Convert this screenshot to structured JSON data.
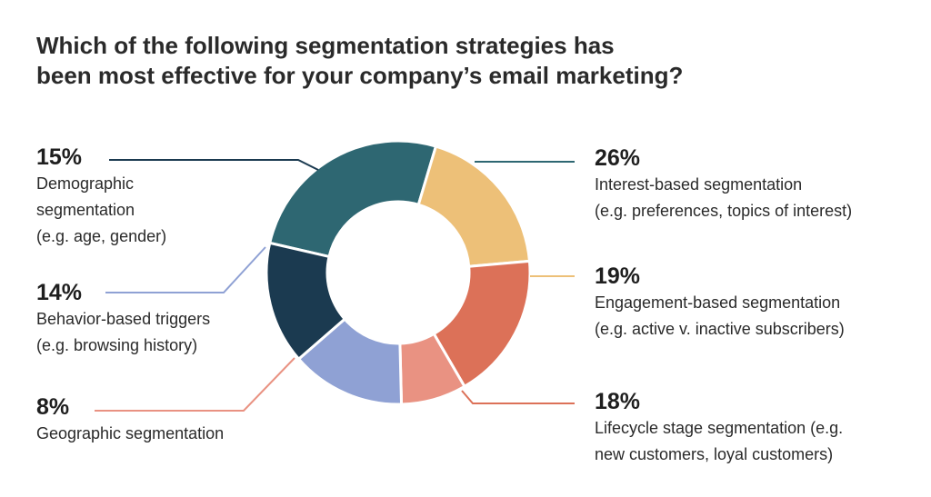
{
  "title_lines": [
    "Which of the following segmentation strategies has",
    "been most effective for your company’s email marketing?"
  ],
  "chart_data": {
    "type": "pie",
    "donut": true,
    "segments": [
      {
        "name": "Interest-based segmentation",
        "value": 26,
        "pct_label": "26%",
        "desc_lines": [
          "Interest-based segmentation",
          "(e.g. preferences, topics of interest)"
        ],
        "color": "#2e6772"
      },
      {
        "name": "Engagement-based segmentation",
        "value": 19,
        "pct_label": "19%",
        "desc_lines": [
          "Engagement-based segmentation",
          "(e.g. active v. inactive subscribers)"
        ],
        "color": "#edc078"
      },
      {
        "name": "Lifecycle stage segmentation",
        "value": 18,
        "pct_label": "18%",
        "desc_lines": [
          "Lifecycle stage segmentation (e.g.",
          "new customers, loyal customers)"
        ],
        "color": "#dc7158"
      },
      {
        "name": "Geographic segmentation",
        "value": 8,
        "pct_label": "8%",
        "desc_lines": [
          "Geographic segmentation"
        ],
        "color": "#e99282"
      },
      {
        "name": "Behavior-based triggers",
        "value": 14,
        "pct_label": "14%",
        "desc_lines": [
          "Behavior-based triggers",
          "(e.g. browsing history)"
        ],
        "color": "#8fa1d4"
      },
      {
        "name": "Demographic segmentation",
        "value": 15,
        "pct_label": "15%",
        "desc_lines": [
          "Demographic",
          "segmentation",
          "(e.g. age, gender)"
        ],
        "color": "#1b3a50"
      }
    ]
  }
}
